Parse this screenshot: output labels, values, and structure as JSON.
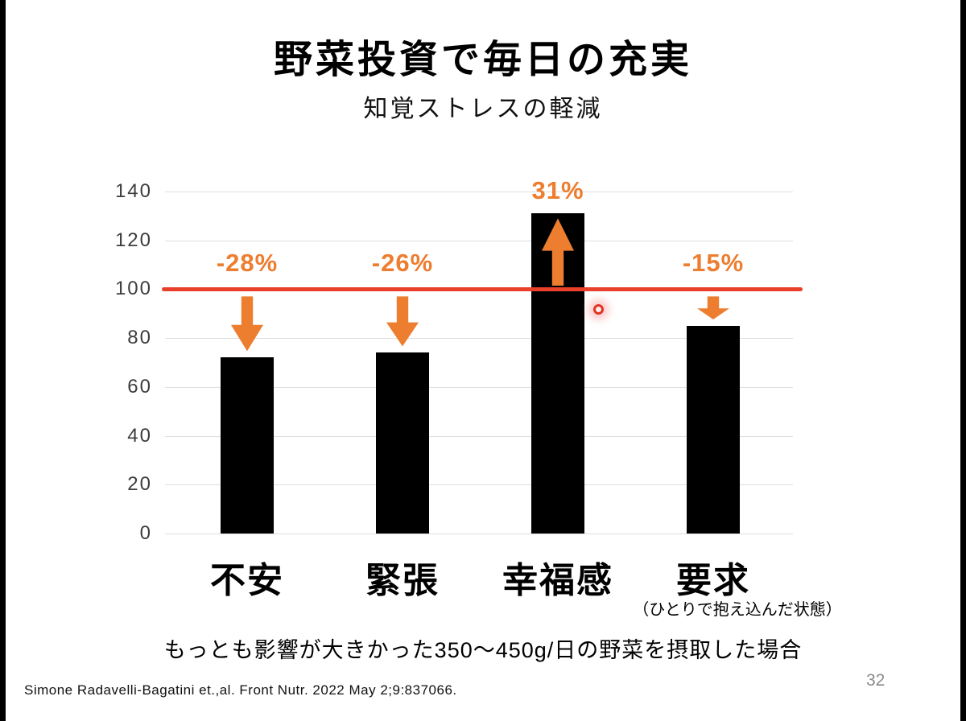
{
  "slide": {
    "title": "野菜投資で毎日の充実",
    "subtitle": "知覚ストレスの軽減",
    "note": "もっとも影響が大きかった350〜450g/日の野菜を摂取した場合",
    "citation": "Simone Radavelli-Bagatini et.,al. Front Nutr. 2022 May 2;9:837066.",
    "page_number": "32"
  },
  "chart_data": {
    "type": "bar",
    "title": "知覚ストレスの軽減",
    "categories": [
      "不安",
      "緊張",
      "幸福感",
      "要求"
    ],
    "values": [
      72,
      74,
      131,
      85
    ],
    "change_labels": [
      "-28%",
      "-26%",
      "31%",
      "-15%"
    ],
    "directions": [
      "down",
      "down",
      "up",
      "down"
    ],
    "category_sublabels": [
      "",
      "",
      "",
      "（ひとりで抱え込んだ状態）"
    ],
    "baseline": 100,
    "yticks": [
      0,
      20,
      40,
      60,
      80,
      100,
      120,
      140
    ],
    "ylim": [
      0,
      140
    ],
    "xlabel": "",
    "ylabel": "",
    "grid": true,
    "legend_position": "none",
    "bar_color": "#000000",
    "accent_color": "#ED7D2F",
    "baseline_color": "#E8402A"
  }
}
